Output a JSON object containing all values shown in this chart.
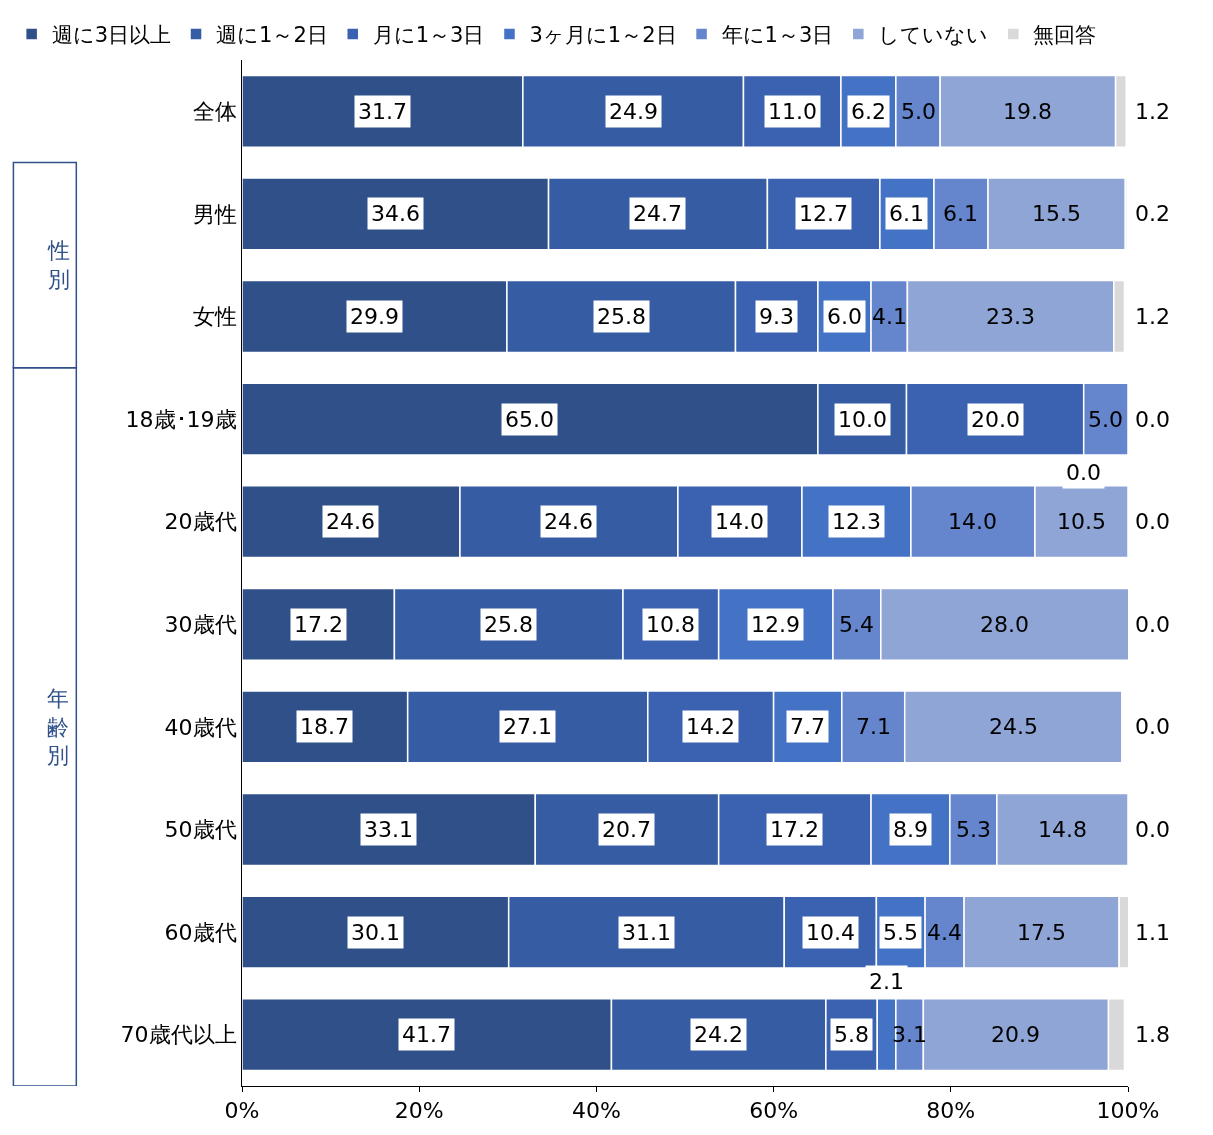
{
  "chart_data": {
    "type": "bar",
    "orientation": "horizontal",
    "stacked": true,
    "categories": [
      "全体",
      "男性",
      "女性",
      "18歳･19歳",
      "20歳代",
      "30歳代",
      "40歳代",
      "50歳代",
      "60歳代",
      "70歳代以上"
    ],
    "series": [
      {
        "name": "週に3日以上",
        "color": "#2f5089",
        "values": [
          31.7,
          34.6,
          29.9,
          65.0,
          24.6,
          17.2,
          18.7,
          33.1,
          30.1,
          41.7
        ],
        "value_labels": [
          "31.7",
          "34.6",
          "29.9",
          "65.0",
          "24.6",
          "17.2",
          "18.7",
          "33.1",
          "30.1",
          "41.7"
        ]
      },
      {
        "name": "週に1～2日",
        "color": "#365ca4",
        "values": [
          24.9,
          24.7,
          25.8,
          10.0,
          24.6,
          25.8,
          27.1,
          20.7,
          31.1,
          24.2
        ],
        "value_labels": [
          "24.9",
          "24.7",
          "25.8",
          "10.0",
          "24.6",
          "25.8",
          "27.1",
          "20.7",
          "31.1",
          "24.2"
        ]
      },
      {
        "name": "月に1～3日",
        "color": "#3b62b0",
        "values": [
          11.0,
          12.7,
          9.3,
          20.0,
          14.0,
          10.8,
          14.2,
          17.2,
          10.4,
          5.8
        ],
        "value_labels": [
          "11.0",
          "12.7",
          "9.3",
          "20.0",
          "14.0",
          "10.8",
          "14.2",
          "17.2",
          "10.4",
          "5.8"
        ]
      },
      {
        "name": "3ヶ月に1～2日",
        "color": "#4472c4",
        "values": [
          6.2,
          6.1,
          6.0,
          0.0,
          12.3,
          12.9,
          7.7,
          8.9,
          5.5,
          2.1
        ],
        "value_labels": [
          "6.2",
          "6.1",
          "6.0",
          "0.0",
          "12.3",
          "12.9",
          "7.7",
          "8.9",
          "5.5",
          "2.1"
        ]
      },
      {
        "name": "年に1～3日",
        "color": "#6586cc",
        "values": [
          5.0,
          6.1,
          4.1,
          5.0,
          14.0,
          5.4,
          7.1,
          5.3,
          4.4,
          3.1
        ],
        "value_labels": [
          "5.0",
          "6.1",
          "4.1",
          "5.0",
          "14.0",
          "5.4",
          "7.1",
          "5.3",
          "4.4",
          "3.1"
        ]
      },
      {
        "name": "していない",
        "color": "#8fa5d6",
        "values": [
          19.8,
          15.5,
          23.3,
          0.0,
          10.5,
          28.0,
          24.5,
          14.8,
          17.5,
          20.9
        ],
        "value_labels": [
          "19.8",
          "15.5",
          "23.3",
          null,
          "10.5",
          "28.0",
          "24.5",
          "14.8",
          "17.5",
          "20.9"
        ]
      },
      {
        "name": "無回答",
        "color": "#d9d9d9",
        "values": [
          1.2,
          0.2,
          1.2,
          0.0,
          0.0,
          0.0,
          0.0,
          0.0,
          1.1,
          1.8
        ],
        "value_labels": [
          "1.2",
          "0.2",
          "1.2",
          "0.0",
          "0.0",
          "0.0",
          "0.0",
          "0.0",
          "1.1",
          "1.8"
        ]
      }
    ],
    "xlim": [
      0,
      100
    ],
    "xticks": [
      {
        "value": 0,
        "label": "0%"
      },
      {
        "value": 20,
        "label": "20%"
      },
      {
        "value": 40,
        "label": "40%"
      },
      {
        "value": 60,
        "label": "60%"
      },
      {
        "value": 80,
        "label": "80%"
      },
      {
        "value": 100,
        "label": "100%"
      }
    ],
    "annotations": [
      "性別",
      "年齢別"
    ],
    "legend": "top"
  }
}
